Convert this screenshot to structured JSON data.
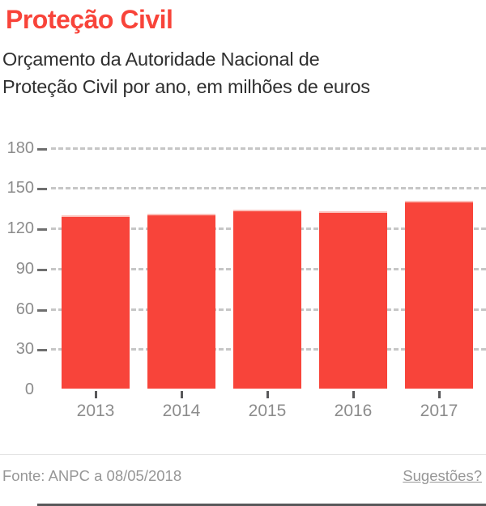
{
  "header": {
    "title": "Proteção Civil",
    "subtitle": "Orçamento da Autoridade Nacional de\nProteção Civil por ano, em milhões de euros"
  },
  "chart_data": {
    "type": "bar",
    "title": "Proteção Civil",
    "subtitle": "Orçamento da Autoridade Nacional de Proteção Civil por ano, em milhões de euros",
    "categories": [
      "2013",
      "2014",
      "2015",
      "2016",
      "2017"
    ],
    "values": [
      128,
      129,
      132,
      131,
      139
    ],
    "unit": "milhões de euros",
    "xlabel": "",
    "ylabel": "",
    "ylim": [
      0,
      180
    ],
    "yticks": [
      0,
      30,
      60,
      90,
      120,
      150,
      180
    ],
    "grid": "horizontal-dashed",
    "legend": "none",
    "bar_color": "#f8443a"
  },
  "footer": {
    "source": "Fonte: ANPC a 08/05/2018",
    "suggestions_label": "Sugestões?"
  },
  "colors": {
    "accent": "#f8443a",
    "bar_top_edge": "#fcc0ba",
    "text_dark": "#303030",
    "axis_label": "#8c8c8c",
    "axis_line": "#58585a",
    "gridline": "#c6c6c6",
    "footer_text": "#979797",
    "divider": "#e3e3e3"
  }
}
